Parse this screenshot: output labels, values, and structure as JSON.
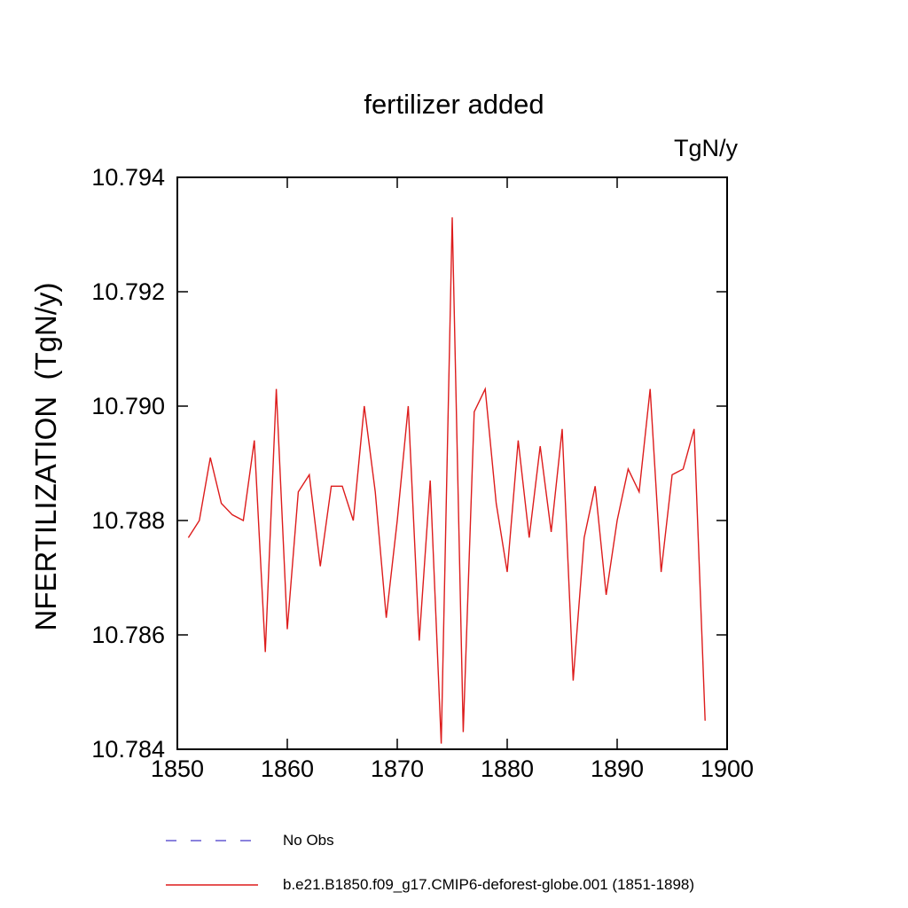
{
  "chart_data": {
    "type": "line",
    "title": "fertilizer added",
    "unit_label": "TgN/y",
    "ylabel": "NFERTILIZATION  (TgN/y)",
    "xlabel": "",
    "xlim": [
      1850,
      1900
    ],
    "ylim": [
      10.784,
      10.794
    ],
    "xticks": [
      1850,
      1860,
      1870,
      1880,
      1890,
      1900
    ],
    "yticks": [
      10.784,
      10.786,
      10.788,
      10.79,
      10.792,
      10.794
    ],
    "ytick_labels": [
      "10.784",
      "10.786",
      "10.788",
      "10.790",
      "10.792",
      "10.794"
    ],
    "grid": false,
    "legend_position": "bottom-left",
    "series": [
      {
        "name": "b.e21.B1850.f09_g17.CMIP6-deforest-globe.001 (1851-1898)",
        "color": "#dd1c1c",
        "style": "solid",
        "x": [
          1851,
          1852,
          1853,
          1854,
          1855,
          1856,
          1857,
          1858,
          1859,
          1860,
          1861,
          1862,
          1863,
          1864,
          1865,
          1866,
          1867,
          1868,
          1869,
          1870,
          1871,
          1872,
          1873,
          1874,
          1875,
          1876,
          1877,
          1878,
          1879,
          1880,
          1881,
          1882,
          1883,
          1884,
          1885,
          1886,
          1887,
          1888,
          1889,
          1890,
          1891,
          1892,
          1893,
          1894,
          1895,
          1896,
          1897,
          1898
        ],
        "values": [
          10.7877,
          10.788,
          10.7891,
          10.7883,
          10.7881,
          10.788,
          10.7894,
          10.7857,
          10.7903,
          10.7861,
          10.7885,
          10.7888,
          10.7872,
          10.7886,
          10.7886,
          10.788,
          10.79,
          10.7885,
          10.7863,
          10.788,
          10.79,
          10.7859,
          10.7887,
          10.7841,
          10.7933,
          10.7843,
          10.7899,
          10.7903,
          10.7883,
          10.7871,
          10.7894,
          10.7877,
          10.7893,
          10.7878,
          10.7896,
          10.7852,
          10.7877,
          10.7886,
          10.7867,
          10.788,
          10.7889,
          10.7885,
          10.7903,
          10.7871,
          10.7888,
          10.7889,
          10.7896,
          10.7845
        ]
      }
    ],
    "legend": [
      {
        "label": "No Obs",
        "color": "#8a82dd",
        "style": "dashed"
      },
      {
        "label": "b.e21.B1850.f09_g17.CMIP6-deforest-globe.001 (1851-1898)",
        "color": "#dd1c1c",
        "style": "solid"
      }
    ]
  }
}
